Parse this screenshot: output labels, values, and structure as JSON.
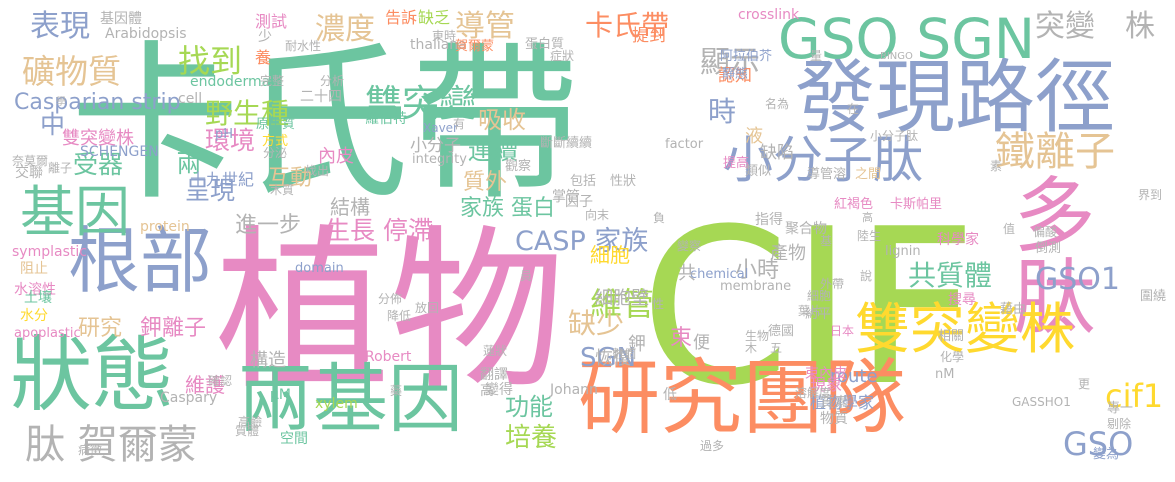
{
  "colors": {
    "teal": "#6cc5a0",
    "blue": "#8da0cb",
    "pink": "#e78ac3",
    "green": "#a6d854",
    "yellow": "#ffd92f",
    "orange": "#fc8d62",
    "tan": "#e5c494",
    "gray": "#b3b3b3"
  },
  "words": [
    {
      "text": "卡氏帶",
      "color": "teal"
    },
    {
      "text": "植物",
      "color": "pink"
    },
    {
      "text": "CIF",
      "color": "green"
    },
    {
      "text": "發現路徑",
      "color": "blue"
    },
    {
      "text": "研究團隊",
      "color": "orange"
    },
    {
      "text": "兩基因",
      "color": "teal"
    },
    {
      "text": "狀態",
      "color": "teal"
    },
    {
      "text": "根部",
      "color": "blue"
    },
    {
      "text": "多肽",
      "color": "pink"
    },
    {
      "text": "雙突變株",
      "color": "yellow"
    },
    {
      "text": "基因",
      "color": "teal"
    },
    {
      "text": "GSO SGN",
      "color": "teal"
    },
    {
      "text": "小分子肽",
      "color": "blue"
    },
    {
      "text": "鐵離子",
      "color": "tan"
    },
    {
      "text": "肽 賀爾蒙",
      "color": "gray"
    },
    {
      "text": "礦物質",
      "color": "tan"
    },
    {
      "text": "表現",
      "color": "blue"
    },
    {
      "text": "找到",
      "color": "green"
    },
    {
      "text": "濃度",
      "color": "tan"
    },
    {
      "text": "導管",
      "color": "tan"
    },
    {
      "text": "卡氏帶",
      "color": "orange"
    },
    {
      "text": "雙突變",
      "color": "teal"
    },
    {
      "text": "突變",
      "color": "gray"
    },
    {
      "text": "株",
      "color": "gray"
    },
    {
      "text": "顯示",
      "color": "gray"
    },
    {
      "text": "野生種",
      "color": "green"
    },
    {
      "text": "Casparian strip",
      "color": "blue"
    },
    {
      "text": "中",
      "color": "blue"
    },
    {
      "text": "環境",
      "color": "pink"
    },
    {
      "text": "吸收",
      "color": "tan"
    },
    {
      "text": "時",
      "color": "blue"
    },
    {
      "text": "連續",
      "color": "teal"
    },
    {
      "text": "受器",
      "color": "teal"
    },
    {
      "text": "質外",
      "color": "tan"
    },
    {
      "text": "兩",
      "color": "teal"
    },
    {
      "text": "呈現",
      "color": "blue"
    },
    {
      "text": "CASP 家族",
      "color": "blue"
    },
    {
      "text": "GSO1",
      "color": "blue"
    },
    {
      "text": "共質體",
      "color": "teal"
    },
    {
      "text": "小時",
      "color": "gray"
    },
    {
      "text": "細胞",
      "color": "yellow"
    },
    {
      "text": "維管",
      "color": "green"
    },
    {
      "text": "缺少",
      "color": "tan"
    },
    {
      "text": "研究",
      "color": "tan"
    },
    {
      "text": "鉀離子",
      "color": "pink"
    },
    {
      "text": "SGN",
      "color": "blue"
    },
    {
      "text": "功能",
      "color": "teal"
    },
    {
      "text": "培養",
      "color": "green"
    },
    {
      "text": "GSO",
      "color": "blue"
    },
    {
      "text": "cif1",
      "color": "yellow"
    },
    {
      "text": "生長 停滯",
      "color": "pink"
    },
    {
      "text": "家族 蛋白",
      "color": "teal"
    },
    {
      "text": "結構",
      "color": "gray"
    },
    {
      "text": "進一步",
      "color": "gray"
    },
    {
      "text": "雙突變株",
      "color": "pink"
    },
    {
      "text": "互動",
      "color": "tan"
    },
    {
      "text": "維護",
      "color": "pink"
    },
    {
      "text": "構造",
      "color": "gray"
    },
    {
      "text": "細胞壁",
      "color": "gray"
    },
    {
      "text": "恢復",
      "color": "gray"
    },
    {
      "text": "產物",
      "color": "gray"
    },
    {
      "text": "束",
      "color": "pink"
    },
    {
      "text": "route",
      "color": "blue"
    },
    {
      "text": "二十四",
      "color": "gray"
    },
    {
      "text": "內皮",
      "color": "pink"
    },
    {
      "text": "小分子",
      "color": "gray"
    },
    {
      "text": "缺陷",
      "color": "gray"
    },
    {
      "text": "基因體",
      "color": "gray"
    },
    {
      "text": "測試",
      "color": "pink"
    },
    {
      "text": "告訴",
      "color": "orange"
    },
    {
      "text": "缺乏",
      "color": "green"
    },
    {
      "text": "crosslink",
      "color": "pink"
    },
    {
      "text": "Arabidopsis",
      "color": "gray"
    },
    {
      "text": "endodermal",
      "color": "teal"
    },
    {
      "text": "thaliana",
      "color": "gray"
    },
    {
      "text": "賀爾蒙",
      "color": "orange"
    },
    {
      "text": "蛋白質",
      "color": "gray"
    },
    {
      "text": "提到",
      "color": "orange"
    },
    {
      "text": "BINGO",
      "color": "gray"
    },
    {
      "text": "阿拉伯芥",
      "color": "blue"
    },
    {
      "text": "認知",
      "color": "orange"
    },
    {
      "text": "靜態",
      "color": "blue"
    },
    {
      "text": "完整",
      "color": "gray"
    },
    {
      "text": "養",
      "color": "orange"
    },
    {
      "text": "cell",
      "color": "gray"
    },
    {
      "text": "分析",
      "color": "gray"
    },
    {
      "text": "羅伯特",
      "color": "teal"
    },
    {
      "text": "Xaver",
      "color": "blue"
    },
    {
      "text": "原生質",
      "color": "teal"
    },
    {
      "text": "方式",
      "color": "yellow"
    },
    {
      "text": "pH",
      "color": "blue"
    },
    {
      "text": "SCHENGEN",
      "color": "blue"
    },
    {
      "text": "integrity",
      "color": "gray"
    },
    {
      "text": "斷斷續續",
      "color": "gray"
    },
    {
      "text": "factor",
      "color": "gray"
    },
    {
      "text": "液",
      "color": "tan"
    },
    {
      "text": "提高",
      "color": "pink"
    },
    {
      "text": "類似",
      "color": "gray"
    },
    {
      "text": "導管溶",
      "color": "gray"
    },
    {
      "text": "之間",
      "color": "tan"
    },
    {
      "text": "包括",
      "color": "gray"
    },
    {
      "text": "觀察",
      "color": "gray"
    },
    {
      "text": "性狀",
      "color": "gray"
    },
    {
      "text": "十九世紀",
      "color": "blue"
    },
    {
      "text": "protein",
      "color": "tan"
    },
    {
      "text": "symplastic",
      "color": "pink"
    },
    {
      "text": "阻止",
      "color": "tan"
    },
    {
      "text": "水溶性",
      "color": "pink"
    },
    {
      "text": "土壤",
      "color": "teal"
    },
    {
      "text": "水分",
      "color": "yellow"
    },
    {
      "text": "apoplastic",
      "color": "pink"
    },
    {
      "text": "domain",
      "color": "blue"
    },
    {
      "text": "lignin",
      "color": "gray"
    },
    {
      "text": "chemical",
      "color": "blue"
    },
    {
      "text": "membrane",
      "color": "gray"
    },
    {
      "text": "Robert",
      "color": "pink"
    },
    {
      "text": "Johann",
      "color": "gray"
    },
    {
      "text": "xylem",
      "color": "green"
    },
    {
      "text": "μM",
      "color": "teal"
    },
    {
      "text": "nM",
      "color": "gray"
    },
    {
      "text": "Caspary",
      "color": "gray"
    },
    {
      "text": "GASSHO1",
      "color": "gray"
    },
    {
      "text": "空間",
      "color": "teal"
    },
    {
      "text": "現象",
      "color": "pink"
    },
    {
      "text": "植物學家",
      "color": "blue"
    },
    {
      "text": "專一",
      "color": "gray"
    },
    {
      "text": "剔除",
      "color": "gray"
    },
    {
      "text": "變為",
      "color": "blue"
    },
    {
      "text": "科學家",
      "color": "pink"
    },
    {
      "text": "搜尋",
      "color": "pink"
    },
    {
      "text": "藉由",
      "color": "gray"
    },
    {
      "text": "圍繞",
      "color": "gray"
    },
    {
      "text": "德國",
      "color": "gray"
    },
    {
      "text": "日本",
      "color": "pink"
    },
    {
      "text": "卡斯帕里",
      "color": "pink"
    },
    {
      "text": "紅褐色",
      "color": "pink"
    },
    {
      "text": "名為",
      "color": "gray"
    },
    {
      "text": "細胞",
      "color": "gray"
    },
    {
      "text": "指得",
      "color": "gray"
    },
    {
      "text": "變察",
      "color": "gray"
    },
    {
      "text": "過多",
      "color": "gray"
    },
    {
      "text": "物質",
      "color": "gray"
    },
    {
      "text": "質素",
      "color": "gray"
    },
    {
      "text": "束內皮",
      "color": "pink"
    },
    {
      "text": "溶解度",
      "color": "gray"
    },
    {
      "text": "倒測",
      "color": "gray"
    },
    {
      "text": "分佈",
      "color": "gray"
    },
    {
      "text": "降低",
      "color": "gray"
    },
    {
      "text": "翻譯",
      "color": "gray"
    },
    {
      "text": "變得",
      "color": "gray"
    },
    {
      "text": "高",
      "color": "gray"
    },
    {
      "text": "鉀",
      "color": "gray"
    },
    {
      "text": "便",
      "color": "gray"
    },
    {
      "text": "低",
      "color": "gray"
    },
    {
      "text": "共",
      "color": "gray"
    },
    {
      "text": "因子",
      "color": "gray"
    },
    {
      "text": "向末",
      "color": "gray"
    },
    {
      "text": "聚合物",
      "color": "gray"
    },
    {
      "text": "掌管",
      "color": "gray"
    },
    {
      "text": "東時",
      "color": "gray"
    },
    {
      "text": "有",
      "color": "gray"
    },
    {
      "text": "離子",
      "color": "gray"
    },
    {
      "text": "木質",
      "color": "gray"
    },
    {
      "text": "奈莫爾",
      "color": "gray"
    },
    {
      "text": "分泌",
      "color": "gray"
    },
    {
      "text": "找出",
      "color": "gray"
    },
    {
      "text": "交聯",
      "color": "gray"
    },
    {
      "text": "學",
      "color": "gray"
    },
    {
      "text": "少",
      "color": "gray"
    },
    {
      "text": "耐水性",
      "color": "gray"
    },
    {
      "text": "約平",
      "color": "gray"
    },
    {
      "text": "生物",
      "color": "gray"
    },
    {
      "text": "相關",
      "color": "gray"
    },
    {
      "text": "化學",
      "color": "gray"
    },
    {
      "text": "值",
      "color": "gray"
    },
    {
      "text": "界到",
      "color": "gray"
    },
    {
      "text": "說",
      "color": "gray"
    },
    {
      "text": "素",
      "color": "gray"
    },
    {
      "text": "基",
      "color": "gray"
    },
    {
      "text": "陸生",
      "color": "gray"
    },
    {
      "text": "性",
      "color": "gray"
    },
    {
      "text": "外帶",
      "color": "gray"
    },
    {
      "text": "葉片",
      "color": "gray"
    },
    {
      "text": "偏酸",
      "color": "gray"
    },
    {
      "text": "確認",
      "color": "gray"
    },
    {
      "text": "高鹼",
      "color": "gray"
    },
    {
      "text": "質體",
      "color": "gray"
    },
    {
      "text": "木",
      "color": "gray"
    },
    {
      "text": "五",
      "color": "gray"
    },
    {
      "text": "更",
      "color": "gray"
    },
    {
      "text": "病徵",
      "color": "gray"
    },
    {
      "text": "放回",
      "color": "gray"
    },
    {
      "text": "藥",
      "color": "gray"
    },
    {
      "text": "蓮狀",
      "color": "gray"
    },
    {
      "text": "員",
      "color": "gray"
    },
    {
      "text": "高",
      "color": "gray"
    },
    {
      "text": "負",
      "color": "gray"
    },
    {
      "text": "小分子肽",
      "color": "gray"
    },
    {
      "text": "症狀",
      "color": "gray"
    },
    {
      "text": "數個",
      "color": "gray"
    },
    {
      "text": "量",
      "color": "gray"
    },
    {
      "text": "在",
      "color": "gray"
    }
  ]
}
